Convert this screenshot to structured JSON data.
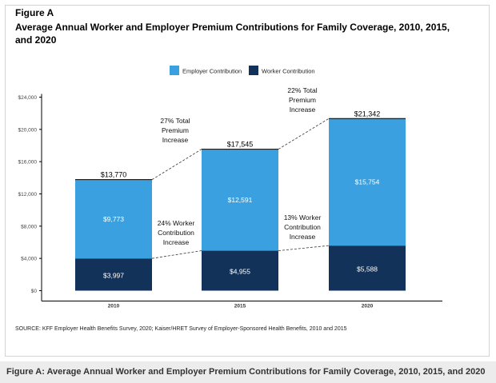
{
  "figure_label": "Figure A",
  "title": "Average Annual Worker and Employer Premium Contributions for Family Coverage, 2010, 2015, and 2020",
  "source": "SOURCE: KFF Employer Health Benefits Survey, 2020; Kaiser/HRET Survey of Employer-Sponsored Health Benefits, 2010 and 2015",
  "caption": "Figure A: Average Annual Worker and Employer Premium Contributions for Family Coverage, 2010, 2015, and 2020",
  "colors": {
    "employer": "#3ba0df",
    "worker": "#13325a"
  },
  "chart_data": {
    "type": "bar",
    "stacked": true,
    "categories": [
      "2010",
      "2015",
      "2020"
    ],
    "series": [
      {
        "name": "Worker Contribution",
        "values": [
          3997,
          4955,
          5588
        ],
        "labels": [
          "$3,997",
          "$4,955",
          "$5,588"
        ]
      },
      {
        "name": "Employer Contribution",
        "values": [
          9773,
          12591,
          15754
        ],
        "labels": [
          "$9,773",
          "$12,591",
          "$15,754"
        ]
      }
    ],
    "totals": [
      13770,
      17545,
      21342
    ],
    "total_labels": [
      "$13,770",
      "$17,545",
      "$21,342"
    ],
    "ylim": [
      0,
      24000
    ],
    "yticks": [
      0,
      4000,
      8000,
      12000,
      16000,
      20000,
      24000
    ],
    "ytick_labels": [
      "$0",
      "$4,000",
      "$8,000",
      "$12,000",
      "$16,000",
      "$20,000",
      "$24,000"
    ],
    "legend_order": [
      "Employer Contribution",
      "Worker Contribution"
    ],
    "legend_position": "top-center",
    "grid": false,
    "annotations": [
      {
        "text": [
          "27% Total",
          "Premium",
          "Increase"
        ],
        "between": [
          0,
          1
        ],
        "target": "total"
      },
      {
        "text": [
          "22% Total",
          "Premium",
          "Increase"
        ],
        "between": [
          1,
          2
        ],
        "target": "total"
      },
      {
        "text": [
          "24% Worker",
          "Contribution",
          "Increase"
        ],
        "between": [
          0,
          1
        ],
        "target": "worker"
      },
      {
        "text": [
          "13% Worker",
          "Contribution",
          "Increase"
        ],
        "between": [
          1,
          2
        ],
        "target": "worker"
      }
    ]
  }
}
